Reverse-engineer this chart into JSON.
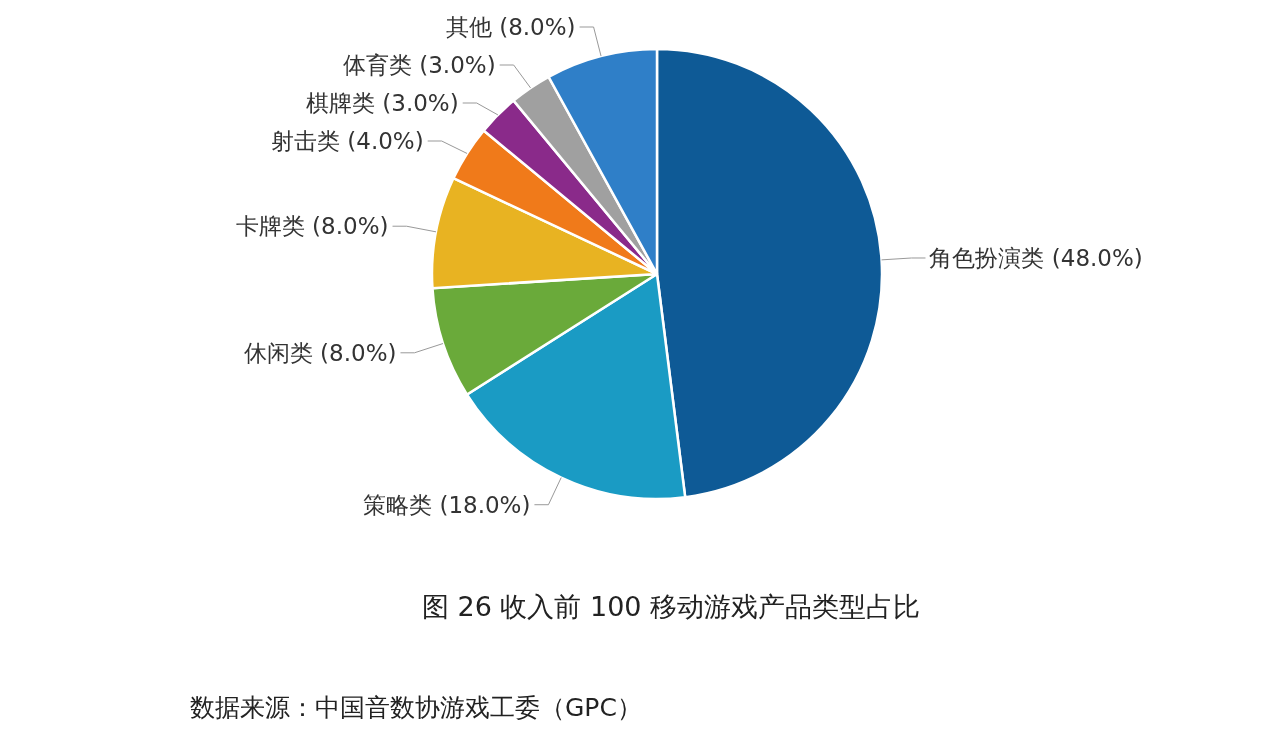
{
  "chart_data": {
    "type": "pie",
    "title": "图 26 收入前 100 移动游戏产品类型占比",
    "categories": [
      "角色扮演类",
      "策略类",
      "休闲类",
      "卡牌类",
      "射击类",
      "棋牌类",
      "体育类",
      "其他"
    ],
    "values": [
      48,
      18,
      8,
      8,
      4,
      3,
      3,
      8
    ],
    "value_labels": [
      "(48.0%)",
      "(18.0%)",
      "(8.0%)",
      "(8.0%)",
      "(4.0%)",
      "(3.0%)",
      "(3.0%)",
      "(8.0%)"
    ],
    "colors": [
      "#0e5a96",
      "#1a9bc4",
      "#6aaa3a",
      "#e8b322",
      "#f07a1a",
      "#8a2a8a",
      "#a0a0a0",
      "#2f7fc8"
    ],
    "annotations": [
      "数据来源：中国音数协游戏工委（GPC）"
    ]
  }
}
